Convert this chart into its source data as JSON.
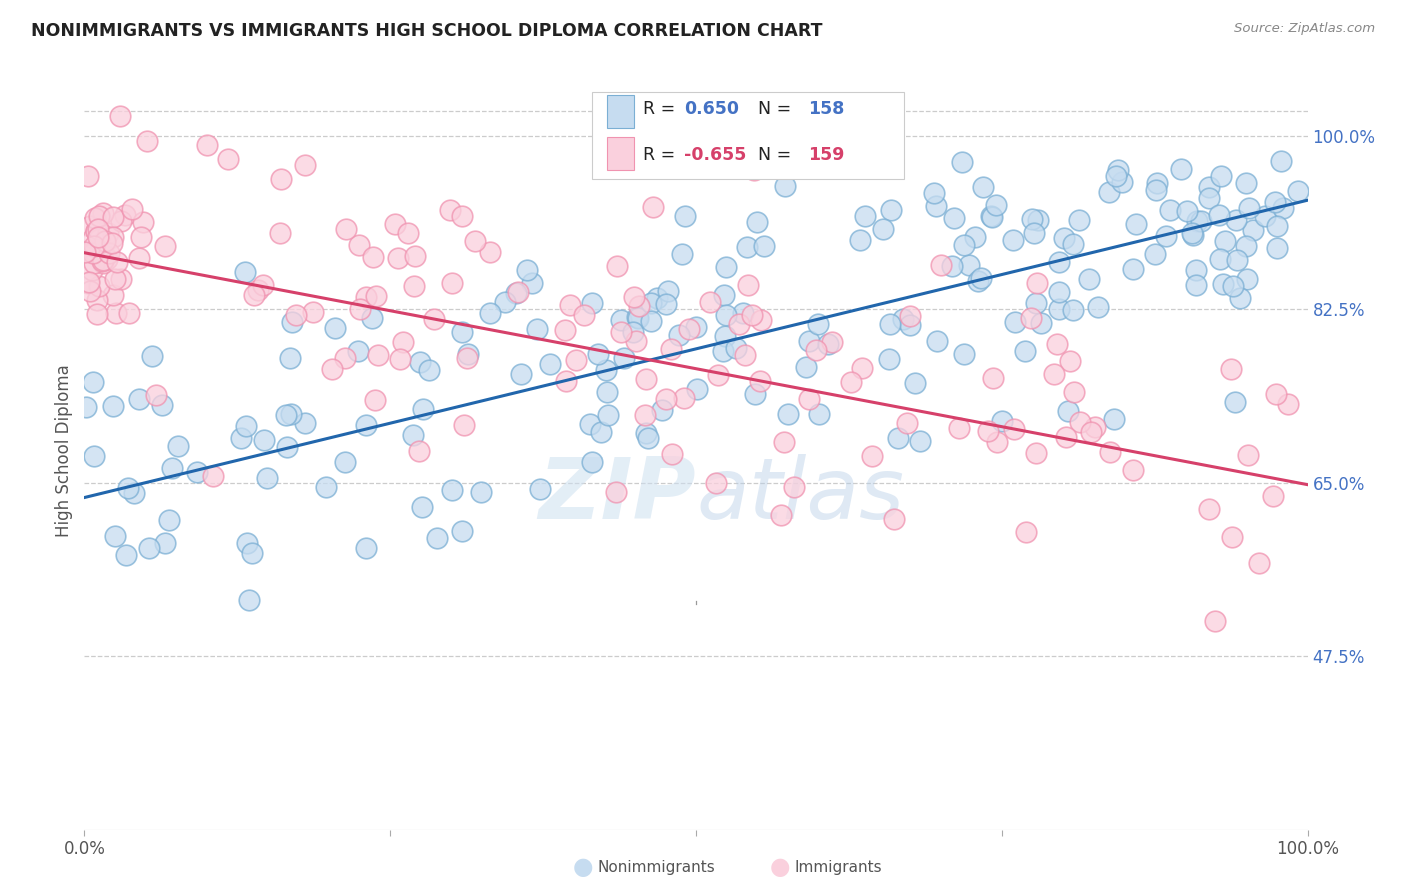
{
  "title": "NONIMMIGRANTS VS IMMIGRANTS HIGH SCHOOL DIPLOMA CORRELATION CHART",
  "source": "Source: ZipAtlas.com",
  "ylabel": "High School Diploma",
  "yticks_labels": [
    "100.0%",
    "82.5%",
    "65.0%",
    "47.5%"
  ],
  "ytick_vals": [
    1.0,
    0.825,
    0.65,
    0.475
  ],
  "nonimmigrants_R": 0.65,
  "nonimmigrants_N": 158,
  "immigrants_R": -0.655,
  "immigrants_N": 159,
  "blue_edge": "#7bafd4",
  "blue_face": "#c6dcf0",
  "pink_edge": "#f093b0",
  "pink_face": "#fad0dd",
  "line_blue": "#2166ac",
  "line_pink": "#d6406a",
  "watermark_color": "#cde0f0",
  "background": "#ffffff",
  "title_color": "#222222",
  "right_tick_color": "#4472c4",
  "legend_text_color": "#222222",
  "legend_val_color_blue": "#4472c4",
  "legend_val_color_pink": "#d6406a",
  "grid_color": "#cccccc",
  "bottom_label_color": "#555555"
}
